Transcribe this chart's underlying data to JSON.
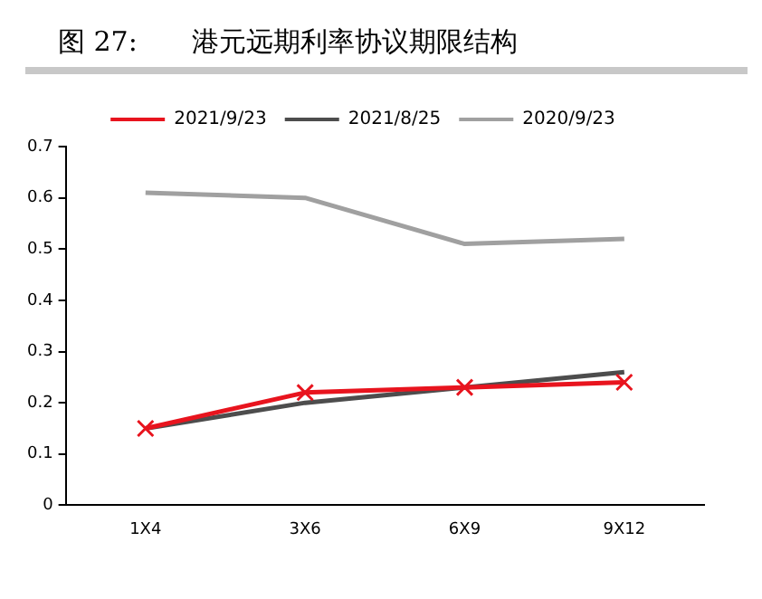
{
  "chart_data": {
    "type": "line",
    "title": "图 27:　　港元远期利率协议期限结构",
    "categories": [
      "1X4",
      "3X6",
      "6X9",
      "9X12"
    ],
    "series": [
      {
        "name": "2021/9/23",
        "color": "#e8141e",
        "values": [
          0.15,
          0.22,
          0.23,
          0.24
        ],
        "marker": "cross"
      },
      {
        "name": "2021/8/25",
        "color": "#4d4d4d",
        "values": [
          0.15,
          0.2,
          0.23,
          0.26
        ],
        "marker": "none"
      },
      {
        "name": "2020/9/23",
        "color": "#a0a0a0",
        "values": [
          0.61,
          0.6,
          0.51,
          0.52
        ],
        "marker": "none"
      }
    ],
    "ylim": [
      0,
      0.7
    ],
    "yticks": [
      0,
      0.1,
      0.2,
      0.3,
      0.4,
      0.5,
      0.6,
      0.7
    ],
    "grid": false,
    "legend": "top"
  }
}
